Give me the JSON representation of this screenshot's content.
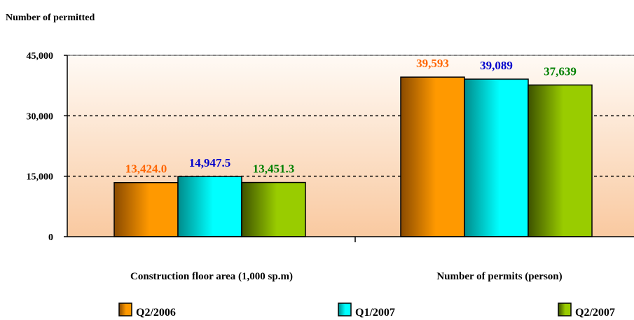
{
  "chart_data": {
    "type": "bar",
    "ylabel": "Number of permitted",
    "categories": [
      "Construction floor area (1,000 sp.m)",
      "Number of permits (person)"
    ],
    "series": [
      {
        "name": "Q2/2006",
        "values": [
          13424.0,
          39593
        ],
        "labels": [
          "13,424.0",
          "39,593"
        ],
        "color": "#ff9900",
        "label_color": "#ff6600"
      },
      {
        "name": "Q1/2007",
        "values": [
          14947.5,
          39089
        ],
        "labels": [
          "14,947.5",
          "39,089"
        ],
        "color": "#00ffff",
        "label_color": "#0000cc"
      },
      {
        "name": "Q2/2007",
        "values": [
          13451.3,
          37639
        ],
        "labels": [
          "13,451.3",
          "37,639"
        ],
        "color": "#99cc00",
        "label_color": "#008000"
      }
    ],
    "ylim": [
      0,
      45000
    ],
    "yticks": [
      0,
      15000,
      30000,
      45000
    ],
    "ytick_labels": [
      "0",
      "15,000",
      "30,000",
      "45,000"
    ],
    "grid": true,
    "legend": "bottom"
  }
}
